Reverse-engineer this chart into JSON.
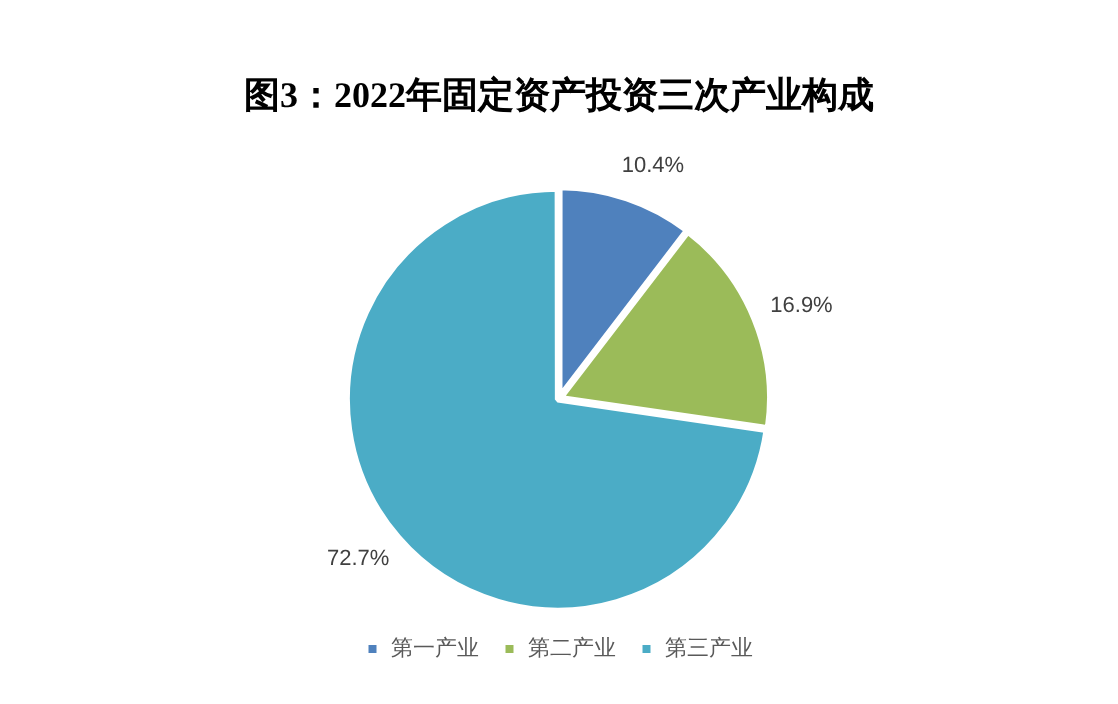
{
  "chart_data": {
    "type": "pie",
    "title": "图3：2022年固定资产投资三次产业构成",
    "categories": [
      "第一产业",
      "第二产业",
      "第三产业"
    ],
    "values": [
      10.4,
      16.9,
      72.7
    ],
    "colors": [
      "#4f81bd",
      "#9bbb59",
      "#4bacc6"
    ],
    "value_labels": [
      "10.4%",
      "16.9%",
      "72.7%"
    ],
    "legend": "bottom"
  }
}
